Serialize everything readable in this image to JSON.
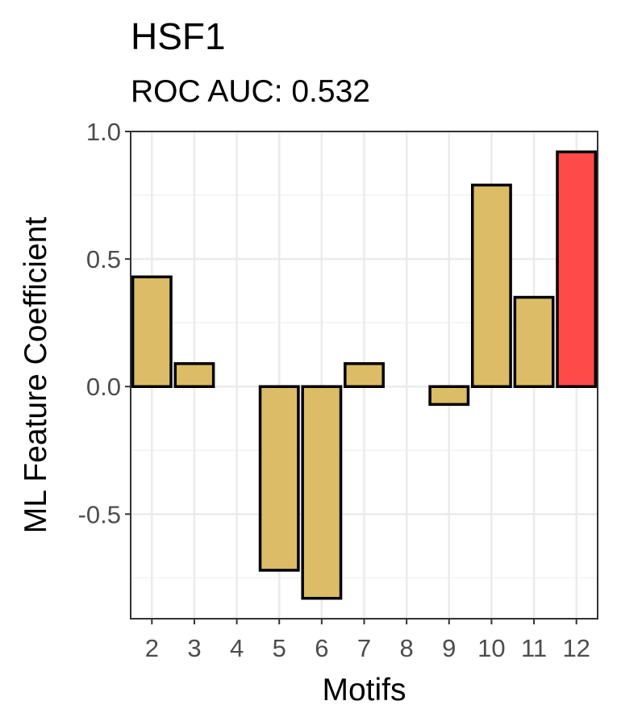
{
  "chart_data": {
    "type": "bar",
    "title": "HSF1",
    "subtitle": "ROC AUC: 0.532",
    "xlabel": "Motifs",
    "ylabel": "ML Feature Coefficient",
    "categories": [
      "2",
      "3",
      "4",
      "5",
      "6",
      "7",
      "8",
      "9",
      "10",
      "11",
      "12"
    ],
    "values": [
      0.43,
      0.09,
      0.0,
      -0.72,
      -0.83,
      0.09,
      0.0,
      -0.07,
      0.79,
      0.35,
      0.92
    ],
    "highlight_index": 10,
    "ylim": [
      -0.91,
      1.0
    ],
    "yticks": [
      1.0,
      0.5,
      0.0,
      -0.5
    ],
    "ytick_labels": [
      "1.0",
      "0.5",
      "0.0",
      "-0.5"
    ],
    "grid": true,
    "legend": "none",
    "colors": {
      "bar_fill": "#dcbc66",
      "highlight_fill": "#ff4a4a",
      "bar_stroke": "#000000",
      "grid_major": "#ebebeb",
      "grid_minor": "#f2f2f2",
      "panel_border": "#333333"
    }
  }
}
